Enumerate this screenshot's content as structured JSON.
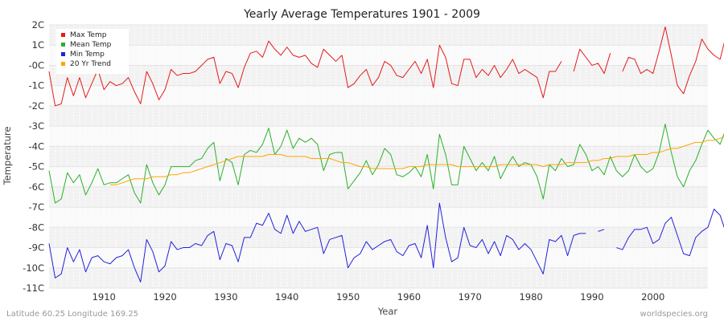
{
  "footer": {
    "location": "Latitude 60.25 Longitude 169.25",
    "site": "worldspecies.org"
  },
  "chart_data": {
    "type": "line",
    "title": "Yearly Average Temperatures 1901 - 2009",
    "xlabel": "Year",
    "ylabel": "Temperature",
    "xlim": [
      1901,
      2009
    ],
    "ylim": [
      -11,
      2
    ],
    "x_ticks": [
      1910,
      1920,
      1930,
      1940,
      1950,
      1960,
      1970,
      1980,
      1990,
      2000
    ],
    "y_ticks": [
      {
        "value": 2,
        "label": "2C"
      },
      {
        "value": 1,
        "label": "1C"
      },
      {
        "value": 0,
        "label": "-0C"
      },
      {
        "value": -1,
        "label": "-1C"
      },
      {
        "value": -2,
        "label": "-2C"
      },
      {
        "value": -3,
        "label": "-3C"
      },
      {
        "value": -4,
        "label": "-4C"
      },
      {
        "value": -5,
        "label": "-5C"
      },
      {
        "value": -6,
        "label": "-6C"
      },
      {
        "value": -7,
        "label": "-7C"
      },
      {
        "value": -8,
        "label": "-8C"
      },
      {
        "value": -9,
        "label": "-9C"
      },
      {
        "value": -10,
        "label": "-10C"
      },
      {
        "value": -11,
        "label": "-11C"
      }
    ],
    "grid": true,
    "legend_position": "top-left",
    "x_start": 1901,
    "series": [
      {
        "name": "Max Temp",
        "color": "#e41a1c",
        "values": [
          -0.3,
          -2.0,
          -1.9,
          -0.6,
          -1.5,
          -0.6,
          -1.6,
          -0.9,
          -0.2,
          -1.2,
          -0.8,
          -1.0,
          -0.9,
          -0.6,
          -1.3,
          -1.9,
          -0.3,
          -0.9,
          -1.7,
          -1.2,
          -0.2,
          -0.5,
          -0.4,
          -0.4,
          -0.3,
          0.0,
          0.3,
          0.4,
          -0.9,
          -0.3,
          -0.4,
          -1.1,
          -0.1,
          0.6,
          0.7,
          0.4,
          1.2,
          0.8,
          0.5,
          0.9,
          0.5,
          0.4,
          0.5,
          0.1,
          -0.1,
          0.8,
          0.5,
          0.2,
          0.5,
          -1.1,
          -0.9,
          -0.5,
          -0.2,
          -1.0,
          -0.6,
          0.2,
          0.0,
          -0.5,
          -0.6,
          -0.2,
          0.2,
          -0.4,
          0.3,
          -1.1,
          1.0,
          0.4,
          -0.9,
          -1.0,
          0.3,
          0.3,
          -0.6,
          -0.2,
          -0.5,
          0.0,
          -0.6,
          -0.2,
          0.3,
          -0.4,
          -0.2,
          -0.4,
          -0.6,
          -1.6,
          -0.3,
          -0.3,
          0.2,
          null,
          -0.3,
          0.8,
          0.4,
          0.0,
          0.1,
          -0.4,
          0.6,
          null,
          -0.3,
          0.4,
          0.3,
          -0.4,
          -0.2,
          -0.4,
          0.7,
          1.9,
          0.5,
          -1.0,
          -1.4,
          -0.5,
          0.2,
          1.3,
          0.8,
          0.5,
          0.3,
          1.5,
          0.3,
          0.5
        ]
      },
      {
        "name": "Mean Temp",
        "color": "#2ab02a",
        "values": [
          -5.2,
          -6.8,
          -6.6,
          -5.3,
          -5.8,
          -5.4,
          -6.4,
          -5.8,
          -5.1,
          -5.9,
          -5.8,
          -5.8,
          -5.6,
          -5.4,
          -6.3,
          -6.8,
          -4.9,
          -5.8,
          -6.4,
          -5.9,
          -5.0,
          -5.0,
          -5.0,
          -5.0,
          -4.7,
          -4.6,
          -4.1,
          -3.8,
          -5.7,
          -4.6,
          -4.8,
          -5.9,
          -4.4,
          -4.2,
          -4.3,
          -3.9,
          -3.1,
          -4.4,
          -4.0,
          -3.2,
          -4.1,
          -3.6,
          -3.8,
          -3.6,
          -3.9,
          -5.2,
          -4.4,
          -4.3,
          -4.3,
          -6.1,
          -5.7,
          -5.3,
          -4.7,
          -5.4,
          -4.9,
          -4.1,
          -4.4,
          -5.4,
          -5.5,
          -5.3,
          -5.0,
          -5.5,
          -4.4,
          -6.1,
          -3.4,
          -4.4,
          -5.9,
          -5.9,
          -4.0,
          -4.6,
          -5.2,
          -4.8,
          -5.2,
          -4.5,
          -5.6,
          -5.0,
          -4.5,
          -5.0,
          -4.8,
          -4.9,
          -5.5,
          -6.6,
          -4.9,
          -5.2,
          -4.6,
          -5.0,
          -4.9,
          -3.9,
          -4.4,
          -5.2,
          -5.0,
          -5.4,
          -4.5,
          -5.2,
          -5.5,
          -5.2,
          -4.4,
          -5.0,
          -5.3,
          -5.1,
          -4.3,
          -2.9,
          -4.3,
          -5.5,
          -6.0,
          -5.2,
          -4.7,
          -3.9,
          -3.2,
          -3.6,
          -3.9,
          -3.1,
          -4.1,
          -3.7
        ]
      },
      {
        "name": "Min Temp",
        "color": "#2121dc",
        "values": [
          -8.8,
          -10.5,
          -10.3,
          -9.0,
          -9.7,
          -9.1,
          -10.2,
          -9.5,
          -9.4,
          -9.7,
          -9.8,
          -9.5,
          -9.4,
          -9.1,
          -10.0,
          -10.7,
          -8.6,
          -9.2,
          -10.2,
          -9.9,
          -8.7,
          -9.1,
          -9.0,
          -9.0,
          -8.8,
          -8.9,
          -8.4,
          -8.2,
          -9.6,
          -8.8,
          -8.9,
          -9.7,
          -8.5,
          -8.5,
          -7.8,
          -7.9,
          -7.3,
          -8.1,
          -8.3,
          -7.4,
          -8.3,
          -7.7,
          -8.2,
          -8.1,
          -8.0,
          -9.3,
          -8.6,
          -8.5,
          -8.4,
          -10.0,
          -9.5,
          -9.3,
          -8.7,
          -9.1,
          -8.9,
          -8.7,
          -8.6,
          -9.2,
          -9.4,
          -8.9,
          -8.8,
          -9.5,
          -7.9,
          -10.0,
          -6.8,
          -8.5,
          -9.7,
          -9.5,
          -8.0,
          -8.9,
          -9.0,
          -8.6,
          -9.3,
          -8.7,
          -9.4,
          -8.4,
          -8.6,
          -9.1,
          -8.8,
          -9.1,
          -9.7,
          -10.3,
          -8.6,
          -8.7,
          -8.4,
          -9.4,
          -8.4,
          -8.3,
          -8.3,
          null,
          -8.2,
          -8.1,
          null,
          -9.0,
          -9.1,
          -8.5,
          -8.1,
          -8.1,
          -8.0,
          -8.8,
          -8.6,
          -7.8,
          -7.5,
          -8.4,
          -9.3,
          -9.4,
          -8.5,
          -8.2,
          -8.0,
          -7.1,
          -7.4,
          -8.3,
          -7.9,
          -8.0
        ]
      },
      {
        "name": "20 Yr Trend",
        "color": "#ffa500",
        "values": [
          null,
          null,
          null,
          null,
          null,
          null,
          null,
          null,
          null,
          null,
          -5.9,
          -5.9,
          -5.8,
          -5.7,
          -5.6,
          -5.6,
          -5.6,
          -5.5,
          -5.5,
          -5.5,
          -5.4,
          -5.4,
          -5.3,
          -5.3,
          -5.2,
          -5.1,
          -5.0,
          -4.9,
          -4.8,
          -4.7,
          -4.6,
          -4.5,
          -4.5,
          -4.5,
          -4.5,
          -4.5,
          -4.4,
          -4.4,
          -4.4,
          -4.5,
          -4.5,
          -4.5,
          -4.5,
          -4.6,
          -4.6,
          -4.6,
          -4.6,
          -4.7,
          -4.8,
          -4.8,
          -4.9,
          -5.0,
          -5.0,
          -5.1,
          -5.1,
          -5.1,
          -5.1,
          -5.1,
          -5.1,
          -5.0,
          -5.0,
          -5.0,
          -4.9,
          -4.9,
          -4.9,
          -4.9,
          -4.9,
          -5.0,
          -5.0,
          -5.0,
          -5.0,
          -5.0,
          -5.0,
          -5.0,
          -4.9,
          -4.9,
          -4.9,
          -4.9,
          -4.9,
          -4.9,
          -4.9,
          -5.0,
          -4.9,
          -4.9,
          -4.9,
          -4.8,
          -4.8,
          -4.8,
          -4.8,
          -4.7,
          -4.7,
          -4.6,
          -4.6,
          -4.5,
          -4.5,
          -4.5,
          -4.4,
          -4.4,
          -4.4,
          -4.3,
          -4.3,
          -4.2,
          -4.1,
          -4.1,
          -4.0,
          -3.9,
          -3.8,
          -3.8,
          -3.7,
          -3.7,
          -3.6,
          -3.5,
          -3.5,
          -3.4
        ]
      }
    ]
  }
}
